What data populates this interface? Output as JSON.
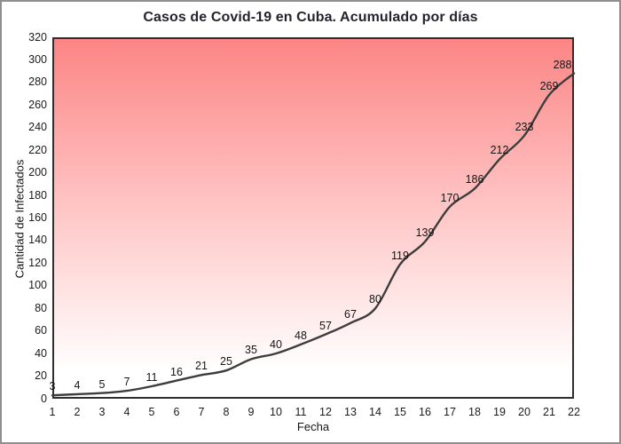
{
  "chart_data": {
    "type": "line",
    "title": "Casos de Covid-19 en Cuba. Acumulado por días",
    "xlabel": "Fecha",
    "ylabel": "Cantidad de Infectados",
    "x": [
      1,
      2,
      3,
      4,
      5,
      6,
      7,
      8,
      9,
      10,
      11,
      12,
      13,
      14,
      15,
      16,
      17,
      18,
      19,
      20,
      21,
      22
    ],
    "values": [
      3,
      4,
      5,
      7,
      11,
      16,
      21,
      25,
      35,
      40,
      48,
      57,
      67,
      80,
      119,
      139,
      170,
      186,
      212,
      233,
      269,
      288
    ],
    "x_ticks": [
      1,
      2,
      3,
      4,
      5,
      6,
      7,
      8,
      9,
      10,
      11,
      12,
      13,
      14,
      15,
      16,
      17,
      18,
      19,
      20,
      21,
      22
    ],
    "y_ticks": [
      0,
      20,
      40,
      60,
      80,
      100,
      120,
      140,
      160,
      180,
      200,
      220,
      240,
      260,
      280,
      300,
      320
    ],
    "ylim": [
      0,
      320
    ],
    "xlim": [
      1,
      22
    ],
    "grid": false,
    "legend": "none",
    "data_labels": true
  },
  "colors": {
    "plot_gradient_top": "#fc8585",
    "plot_gradient_mid": "#ffc9c9",
    "plot_gradient_bottom": "#ffffff",
    "line": "#3d3d3d",
    "title_text": "#24242e",
    "axis_text": "#1a1a1a",
    "plot_border": "#2e2e2e",
    "outer_border": "#8f8f8f"
  }
}
